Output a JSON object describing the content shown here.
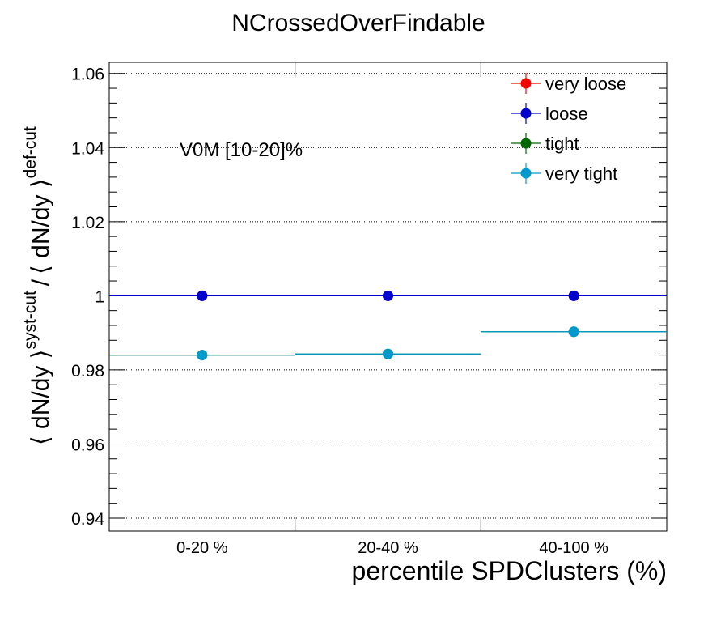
{
  "chart_data": {
    "type": "scatter",
    "title": "NCrossedOverFindable",
    "xlabel": "percentile SPDClusters (%)",
    "ylabel": {
      "numerator": "⟨ dN/dy ⟩",
      "numerator_sup": "syst-cut",
      "separator": "/",
      "denominator": "⟨ dN/dy ⟩",
      "denominator_sup": "def-cut"
    },
    "categories": [
      "0-20 %",
      "20-40 %",
      "40-100 %"
    ],
    "ylim": [
      0.9365,
      1.063
    ],
    "yticks": [
      0.94,
      0.96,
      0.98,
      1,
      1.02,
      1.04,
      1.06
    ],
    "ytick_labels": [
      "0.94",
      "0.96",
      "0.98",
      "1",
      "1.02",
      "1.04",
      "1.06"
    ],
    "grid": true,
    "annotation": "V0M [10-20]%",
    "legend_position": "top-right",
    "series": [
      {
        "name": "very loose",
        "color": "#ff0000",
        "values": [
          1.0,
          1.0,
          1.0
        ],
        "errors": [
          0.0,
          0.0,
          0.0
        ]
      },
      {
        "name": "loose",
        "color": "#0000cc",
        "values": [
          1.0,
          1.0,
          1.0
        ],
        "errors": [
          0.0,
          0.0,
          0.0
        ]
      },
      {
        "name": "tight",
        "color": "#006600",
        "values": [
          0.984,
          0.9843,
          0.9903
        ],
        "errors": [
          0.0004,
          0.0004,
          0.0012
        ]
      },
      {
        "name": "very tight",
        "color": "#0099cc",
        "values": [
          0.984,
          0.9843,
          0.9903
        ],
        "errors": [
          0.0004,
          0.0004,
          0.0012
        ]
      }
    ]
  }
}
